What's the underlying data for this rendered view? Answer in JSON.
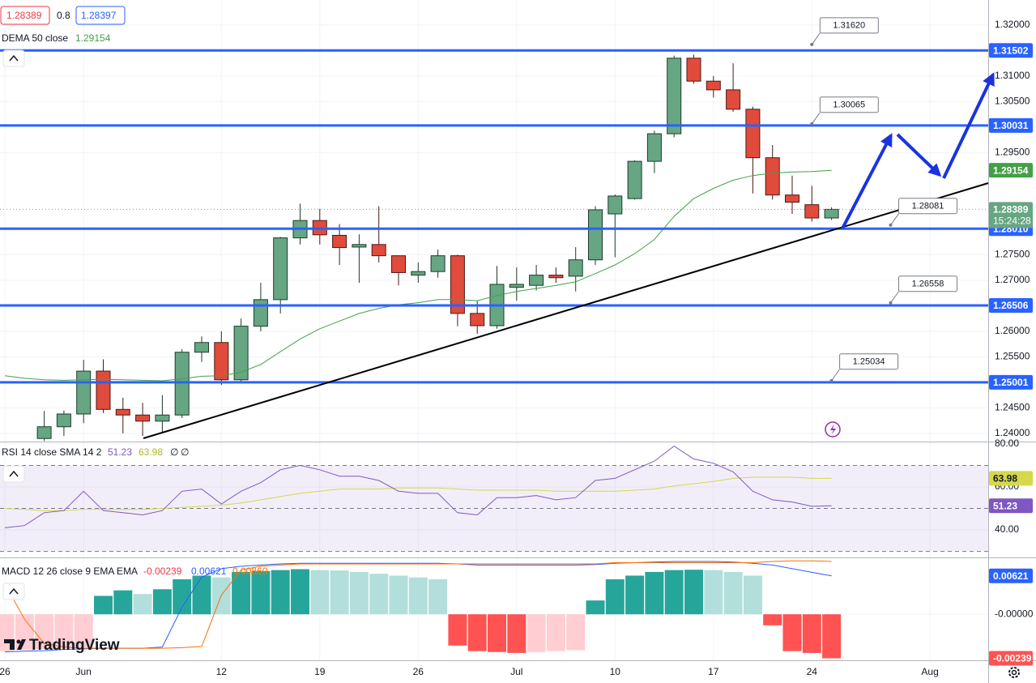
{
  "header": {
    "sell": 1.28389,
    "spread": 0.8,
    "buy": 1.28397
  },
  "watermark": "TradingView",
  "chart_data": [
    {
      "type": "candlestick",
      "categories": [
        "26",
        null,
        null,
        null,
        "Jun",
        null,
        null,
        null,
        null,
        null,
        null,
        "12",
        null,
        null,
        null,
        null,
        "19",
        null,
        null,
        null,
        null,
        "26",
        null,
        null,
        null,
        null,
        "Jul",
        null,
        null,
        null,
        null,
        "10",
        null,
        null,
        null,
        null,
        "17",
        null,
        null,
        null,
        null,
        "24",
        null,
        null,
        null,
        null,
        null,
        "Aug"
      ],
      "open": [
        null,
        null,
        1.239,
        1.2413,
        1.2438,
        1.2522,
        1.2447,
        1.2436,
        1.2424,
        1.2436,
        1.2559,
        1.2578,
        1.2505,
        1.261,
        1.2662,
        1.2783,
        1.2817,
        1.2788,
        1.2765,
        1.277,
        1.2748,
        1.271,
        1.2717,
        1.2748,
        1.2635,
        1.2611,
        1.2686,
        1.269,
        1.271,
        1.2708,
        1.274,
        1.283,
        1.286,
        1.2933,
        1.2987,
        1.3135,
        1.309,
        1.3073,
        1.3035,
        1.294,
        1.2867,
        1.2848,
        1.2822,
        null,
        null,
        null,
        null,
        null
      ],
      "high": [
        null,
        null,
        1.2444,
        1.2445,
        1.2544,
        1.2545,
        1.247,
        1.246,
        1.2475,
        1.2565,
        1.259,
        1.26,
        1.2625,
        1.2695,
        1.2785,
        1.285,
        1.284,
        1.281,
        1.279,
        1.2845,
        1.2748,
        1.2735,
        1.276,
        1.275,
        1.266,
        1.2728,
        1.2725,
        1.273,
        1.2725,
        1.2765,
        1.2845,
        1.2868,
        1.2935,
        1.2993,
        1.314,
        1.3142,
        1.31,
        1.3125,
        1.304,
        1.2965,
        1.2905,
        1.2885,
        1.2843,
        null,
        null,
        null,
        null,
        null
      ],
      "low": [
        null,
        null,
        1.2385,
        1.2395,
        1.242,
        1.244,
        1.24,
        1.2395,
        1.24,
        1.243,
        1.254,
        1.2495,
        1.25,
        1.26,
        1.2635,
        1.277,
        1.277,
        1.273,
        1.2695,
        1.2735,
        1.269,
        1.2695,
        1.2705,
        1.261,
        1.2595,
        1.2605,
        1.266,
        1.268,
        1.2695,
        1.2678,
        1.273,
        1.2745,
        1.2858,
        1.291,
        1.298,
        1.3085,
        1.3058,
        1.303,
        1.287,
        1.2858,
        1.283,
        1.2815,
        1.2818,
        null,
        null,
        null,
        null,
        null
      ],
      "close": [
        null,
        null,
        1.2413,
        1.2438,
        1.2522,
        1.2447,
        1.2436,
        1.2424,
        1.2436,
        1.2559,
        1.2578,
        1.2505,
        1.261,
        1.2662,
        1.2783,
        1.2817,
        1.2789,
        1.2764,
        1.277,
        1.2748,
        1.2715,
        1.2717,
        1.2748,
        1.2635,
        1.2611,
        1.2692,
        1.2692,
        1.271,
        1.2705,
        1.274,
        1.2838,
        1.2865,
        1.2933,
        1.2987,
        1.3135,
        1.309,
        1.3073,
        1.3035,
        1.294,
        1.2867,
        1.2853,
        1.2822,
        1.28389,
        null,
        null,
        null,
        null,
        null
      ],
      "up_color": "#66a683",
      "down_color": "#e04b3c",
      "countdown": "15:24:28",
      "overlays": [
        {
          "name": "DEMA 50 close",
          "color": "#43a047",
          "values": [
            1.2513,
            1.2508,
            1.2505,
            1.2504,
            1.2505,
            1.2506,
            1.2505,
            1.2504,
            1.2503,
            1.2507,
            1.2512,
            1.2513,
            1.252,
            1.2535,
            1.256,
            1.2585,
            1.2605,
            1.262,
            1.2635,
            1.2645,
            1.2652,
            1.2656,
            1.2662,
            1.2662,
            1.266,
            1.267,
            1.2678,
            1.2684,
            1.269,
            1.2697,
            1.2713,
            1.273,
            1.2752,
            1.278,
            1.2825,
            1.286,
            1.288,
            1.2896,
            1.2905,
            1.291,
            1.2912,
            1.2913,
            1.29154,
            null,
            null,
            null,
            null,
            null
          ]
        }
      ],
      "levels": [
        1.31502,
        1.30031,
        {
          "value": 1.2801,
          "label": "1.28010"
        },
        1.26506,
        1.25001
      ],
      "level_color": "#2962ff",
      "callouts": [
        {
          "value": 1.3162,
          "label": "1.31620"
        },
        1.30065,
        1.28081,
        1.26558,
        1.25034
      ],
      "ylim": [
        1.2384,
        1.3249
      ],
      "yticks": [
        {
          "value": 1.32,
          "label": "1.32000"
        },
        {
          "value": 1.31,
          "label": "1.31000"
        },
        {
          "value": 1.305,
          "label": "1.30500"
        },
        {
          "value": 1.295,
          "label": "1.29500"
        },
        {
          "value": 1.275,
          "label": "1.27500"
        },
        {
          "value": 1.27,
          "label": "1.27000"
        },
        {
          "value": 1.26,
          "label": "1.26000"
        },
        {
          "value": 1.255,
          "label": "1.25500"
        },
        {
          "value": 1.245,
          "label": "1.24500"
        },
        {
          "value": 1.24,
          "label": "1.24000"
        }
      ],
      "grid": true
    },
    {
      "type": "line",
      "title": "RSI 14 close SMA 14 2",
      "series": [
        {
          "color": "#7e57c2",
          "values": [
            41,
            42,
            48,
            49,
            58,
            49,
            48,
            47,
            49,
            58,
            59,
            52,
            58,
            62,
            68,
            70,
            68,
            65,
            65,
            63,
            58,
            57,
            57,
            48,
            47,
            55,
            55,
            56,
            54,
            55,
            63,
            64,
            68,
            72,
            79,
            73,
            71,
            67,
            58,
            54,
            53,
            51,
            51.23,
            null,
            null,
            null,
            null,
            null
          ]
        },
        {
          "color": "#d4d84a",
          "values": [
            50,
            49.5,
            49,
            49,
            49.5,
            49.5,
            49.5,
            49.5,
            50,
            50.5,
            51,
            51.5,
            52.5,
            54,
            55.5,
            57,
            58,
            59,
            59,
            59,
            59.5,
            59.5,
            59.5,
            59,
            58.5,
            58.5,
            58.5,
            58.5,
            58,
            58,
            58,
            58,
            58.5,
            59,
            60.5,
            61.5,
            62.5,
            64,
            64.5,
            64.5,
            64.5,
            64,
            63.98,
            null,
            null,
            null,
            null,
            null
          ]
        }
      ],
      "na_labels": [
        "∅",
        "∅"
      ],
      "band": [
        30,
        70
      ],
      "middle": 50,
      "band_color": "#7e57c2",
      "ylim": [
        27.2,
        81.1
      ],
      "yticks": [
        {
          "value": 80,
          "label": "80.00"
        },
        {
          "value": 60,
          "label": "60.00"
        },
        {
          "value": 40,
          "label": "40.00"
        }
      ]
    },
    {
      "type": "macd",
      "title": "MACD 12 26 close 9 EMA EMA",
      "histogram": {
        "values": [
          -0.002,
          -0.00195,
          -0.0019,
          -0.00185,
          -0.0018,
          0.001,
          0.0013,
          0.0011,
          0.00136,
          0.0019,
          0.0021,
          0.002,
          0.0023,
          0.00235,
          0.0024,
          0.00245,
          0.0024,
          0.00238,
          0.0023,
          0.0022,
          0.0021,
          0.002,
          0.0019,
          -0.0017,
          -0.002,
          -0.00205,
          -0.0021,
          -0.00205,
          -0.002,
          -0.00195,
          0.00075,
          0.0019,
          0.0021,
          0.0023,
          0.0024,
          0.00242,
          0.0024,
          0.0023,
          0.0021,
          -0.0006,
          -0.002,
          -0.0021,
          -0.00239,
          null,
          null,
          null,
          null,
          null
        ],
        "colors": {
          "rise_above": "#26a69a",
          "fall_above": "#b2dfdb",
          "rise_below": "#ffcdd2",
          "fall_below": "#ff5252"
        }
      },
      "series": [
        {
          "axis": "y2",
          "color": "#2962ff",
          "values": [
            -0.0064,
            -0.0063,
            -0.0062,
            -0.006,
            -0.0059,
            -0.0058,
            -0.0058,
            -0.0058,
            -0.0056,
            0.001,
            0.006,
            0.0074,
            0.0078,
            0.008,
            0.0082,
            0.0083,
            0.0083,
            0.0083,
            0.0083,
            0.0083,
            0.0083,
            0.0083,
            0.0083,
            0.0082,
            0.008,
            0.008,
            0.008,
            0.008,
            0.008,
            0.008,
            0.0081,
            0.0083,
            0.0084,
            0.0085,
            0.0086,
            0.0086,
            0.0086,
            0.0085,
            0.0083,
            0.008,
            0.0074,
            0.0068,
            0.00621,
            null,
            null,
            null,
            null,
            null
          ]
        },
        {
          "axis": "y2",
          "color": "#ff6d00",
          "values": [
            0.0049,
            -0.001,
            -0.005,
            -0.0056,
            -0.0058,
            -0.0058,
            -0.0058,
            -0.0058,
            -0.0058,
            -0.0057,
            -0.0055,
            0.003,
            0.0072,
            0.0078,
            0.008,
            0.0082,
            0.0082,
            0.0082,
            0.0082,
            0.0082,
            0.0082,
            0.0082,
            0.0082,
            0.0082,
            0.0082,
            0.0082,
            0.0082,
            0.0082,
            0.0082,
            0.0082,
            0.0082,
            0.0084,
            0.0084,
            0.0084,
            0.0084,
            0.0084,
            0.0084,
            0.0084,
            0.0084,
            0.0086,
            0.0087,
            0.0087,
            0.0086,
            null,
            null,
            null,
            null,
            null
          ],
          "value_labels": [
            null,
            null,
            null,
            null,
            null,
            null,
            null,
            null,
            null,
            null,
            null,
            null,
            null,
            null,
            null,
            null,
            null,
            null,
            null,
            null,
            null,
            null,
            null,
            null,
            null,
            null,
            null,
            null,
            null,
            null,
            null,
            null,
            null,
            null,
            null,
            null,
            null,
            null,
            null,
            null,
            null,
            null,
            "0.00860",
            null,
            null,
            null,
            null,
            null
          ]
        }
      ],
      "ylim": [
        -0.0025,
        0.003
      ],
      "yticks": [
        {
          "value": 0,
          "label": "-0.00000"
        }
      ],
      "y2lim": [
        -0.0078,
        0.009
      ]
    }
  ]
}
